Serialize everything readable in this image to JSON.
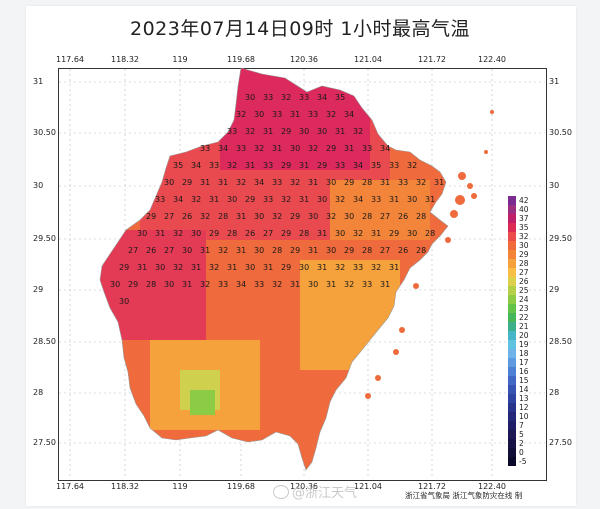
{
  "title": "2023年07月14日09时  1小时最高气温",
  "lon_ticks": [
    "117.64",
    "118.32",
    "119",
    "119.68",
    "120.36",
    "121.04",
    "121.72",
    "122.40"
  ],
  "lat_ticks": [
    "31",
    "30.50",
    "30",
    "29.50",
    "29",
    "28.50",
    "28",
    "27.50"
  ],
  "legend": {
    "levels": [
      "42",
      "40",
      "37",
      "35",
      "32",
      "30",
      "29",
      "28",
      "27",
      "26",
      "25",
      "24",
      "23",
      "22",
      "21",
      "20",
      "19",
      "18",
      "17",
      "16",
      "15",
      "14",
      "13",
      "12",
      "10",
      "7",
      "5",
      "2",
      "0",
      "-5"
    ],
    "colors": [
      "#7b2a8f",
      "#9c2d7f",
      "#c01f6a",
      "#dd2a55",
      "#ec4d4a",
      "#f06a3c",
      "#f2853a",
      "#f5a23d",
      "#f7be48",
      "#dcd04c",
      "#b4d046",
      "#8ccb45",
      "#63c24a",
      "#46b85a",
      "#3db08b",
      "#47b5c8",
      "#5fc2df",
      "#6fb3e8",
      "#5f9ae0",
      "#4d80d4",
      "#4068c4",
      "#3653b3",
      "#2e42a0",
      "#28348c",
      "#232878",
      "#1f1f66",
      "#1b1855",
      "#161346",
      "#110e38",
      "#0c0a2a"
    ]
  },
  "temperature_labels": [
    "30",
    "33",
    "32",
    "33",
    "34",
    "35",
    "32",
    "30",
    "33",
    "31",
    "33",
    "32",
    "34",
    "33",
    "32",
    "31",
    "29",
    "30",
    "30",
    "31",
    "32",
    "33",
    "34",
    "33",
    "32",
    "31",
    "30",
    "32",
    "29",
    "31",
    "33",
    "34",
    "35",
    "34",
    "33",
    "32",
    "31",
    "33",
    "29",
    "31",
    "29",
    "33",
    "34",
    "35",
    "33",
    "32",
    "30",
    "29",
    "31",
    "31",
    "32",
    "34",
    "33",
    "32",
    "31",
    "30",
    "29",
    "28",
    "31",
    "33",
    "32",
    "31",
    "33",
    "34",
    "32",
    "31",
    "30",
    "29",
    "33",
    "32",
    "31",
    "30",
    "32",
    "34",
    "33",
    "31",
    "30",
    "31",
    "29",
    "27",
    "26",
    "32",
    "28",
    "31",
    "30",
    "32",
    "29",
    "30",
    "32",
    "30",
    "28",
    "27",
    "26",
    "28",
    "30",
    "31",
    "32",
    "30",
    "29",
    "28",
    "26",
    "27",
    "29",
    "28",
    "31",
    "30",
    "32",
    "31",
    "29",
    "30",
    "28",
    "27",
    "26",
    "27",
    "30",
    "31",
    "32",
    "31",
    "30",
    "28",
    "29",
    "31",
    "30",
    "29",
    "28",
    "27",
    "26",
    "28",
    "29",
    "31",
    "30",
    "32",
    "31",
    "32",
    "31",
    "30",
    "31",
    "29",
    "30",
    "31",
    "32",
    "33",
    "32",
    "31",
    "30",
    "29",
    "28",
    "30",
    "31",
    "32",
    "33",
    "34",
    "33",
    "32",
    "31",
    "30",
    "31",
    "32",
    "33",
    "31",
    "30"
  ],
  "credits": "浙江省气象局    浙江气象防灾在线 制",
  "watermark": "@浙江天气"
}
